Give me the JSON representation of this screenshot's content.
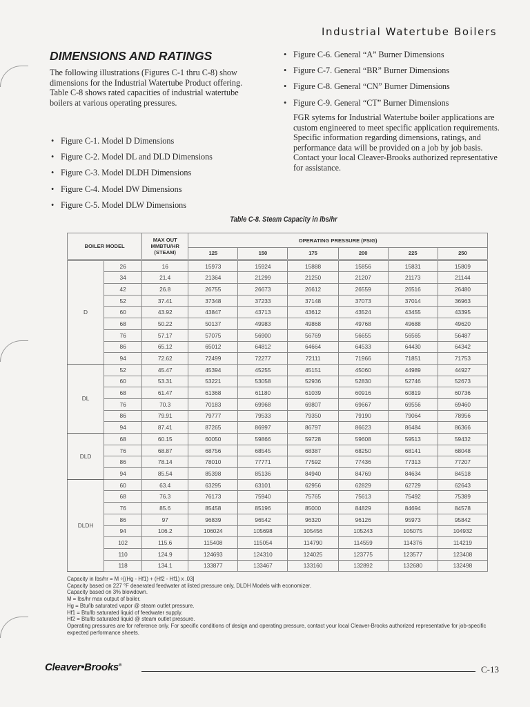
{
  "header": {
    "title": "Industrial Watertube Boilers"
  },
  "section": {
    "title": "DIMENSIONS AND RATINGS",
    "intro": "The following illustrations (Figures C-1 thru C-8) show dimensions for the Industrial Watertube Product offering. Table C-8 shows rated capacities of industrial watertube boilers at various operating pressures.",
    "left_bullets": [
      "Figure C-1. Model D Dimensions",
      "Figure C-2. Model DL and DLD Dimensions",
      "Figure C-3. Model DLDH Dimensions",
      "Figure C-4. Model DW Dimensions",
      "Figure C-5. Model DLW Dimensions"
    ],
    "right_bullets": [
      "Figure C-6. General “A” Burner Dimensions",
      "Figure C-7. General “BR” Burner Dimensions",
      "Figure C-8. General “CN” Burner Dimensions",
      "Figure C-9. General “CT” Burner Dimensions"
    ],
    "fgr_paragraph": "FGR sytems for Industrial Watertube boiler applications are custom engineered to meet specific application requirements. Specific information regarding dimensions, ratings, and performance data will be provided on a job by job basis. Contact your local Cleaver-Brooks authorized representative for assistance."
  },
  "table": {
    "caption": "Table C-8. Steam Capacity in lbs/hr",
    "headers": {
      "boiler_model": "BOILER MODEL",
      "max_out": "MAX OUT MMBTU/HR (STEAM)",
      "pressure": "OPERATING PRESSURE (PSIG)",
      "pressures": [
        "125",
        "150",
        "175",
        "200",
        "225",
        "250"
      ]
    },
    "groups": [
      {
        "model": "D",
        "rows": [
          [
            "26",
            "16",
            "15973",
            "15924",
            "15888",
            "15856",
            "15831",
            "15809"
          ],
          [
            "34",
            "21.4",
            "21364",
            "21299",
            "21250",
            "21207",
            "21173",
            "21144"
          ],
          [
            "42",
            "26.8",
            "26755",
            "26673",
            "26612",
            "26559",
            "26516",
            "26480"
          ],
          [
            "52",
            "37.41",
            "37348",
            "37233",
            "37148",
            "37073",
            "37014",
            "36963"
          ],
          [
            "60",
            "43.92",
            "43847",
            "43713",
            "43612",
            "43524",
            "43455",
            "43395"
          ],
          [
            "68",
            "50.22",
            "50137",
            "49983",
            "49868",
            "49768",
            "49688",
            "49620"
          ],
          [
            "76",
            "57.17",
            "57075",
            "56900",
            "56769",
            "56655",
            "56565",
            "56487"
          ],
          [
            "86",
            "65.12",
            "65012",
            "64812",
            "64664",
            "64533",
            "64430",
            "64342"
          ],
          [
            "94",
            "72.62",
            "72499",
            "72277",
            "72111",
            "71966",
            "71851",
            "71753"
          ]
        ]
      },
      {
        "model": "DL",
        "rows": [
          [
            "52",
            "45.47",
            "45394",
            "45255",
            "45151",
            "45060",
            "44989",
            "44927"
          ],
          [
            "60",
            "53.31",
            "53221",
            "53058",
            "52936",
            "52830",
            "52746",
            "52673"
          ],
          [
            "68",
            "61.47",
            "61368",
            "61180",
            "61039",
            "60916",
            "60819",
            "60736"
          ],
          [
            "76",
            "70.3",
            "70183",
            "69968",
            "69807",
            "69667",
            "69556",
            "69460"
          ],
          [
            "86",
            "79.91",
            "79777",
            "79533",
            "79350",
            "79190",
            "79064",
            "78956"
          ],
          [
            "94",
            "87.41",
            "87265",
            "86997",
            "86797",
            "86623",
            "86484",
            "86366"
          ]
        ]
      },
      {
        "model": "DLD",
        "rows": [
          [
            "68",
            "60.15",
            "60050",
            "59866",
            "59728",
            "59608",
            "59513",
            "59432"
          ],
          [
            "76",
            "68.87",
            "68756",
            "68545",
            "68387",
            "68250",
            "68141",
            "68048"
          ],
          [
            "86",
            "78.14",
            "78010",
            "77771",
            "77592",
            "77436",
            "77313",
            "77207"
          ],
          [
            "94",
            "85.54",
            "85398",
            "85136",
            "84940",
            "84769",
            "84634",
            "84518"
          ]
        ]
      },
      {
        "model": "DLDH",
        "rows": [
          [
            "60",
            "63.4",
            "63295",
            "63101",
            "62956",
            "62829",
            "62729",
            "62643"
          ],
          [
            "68",
            "76.3",
            "76173",
            "75940",
            "75765",
            "75613",
            "75492",
            "75389"
          ],
          [
            "76",
            "85.6",
            "85458",
            "85196",
            "85000",
            "84829",
            "84694",
            "84578"
          ],
          [
            "86",
            "97",
            "96839",
            "96542",
            "96320",
            "96126",
            "95973",
            "95842"
          ],
          [
            "94",
            "106.2",
            "106024",
            "105698",
            "105456",
            "105243",
            "105075",
            "104932"
          ],
          [
            "102",
            "115.6",
            "115408",
            "115054",
            "114790",
            "114559",
            "114376",
            "114219"
          ],
          [
            "110",
            "124.9",
            "124693",
            "124310",
            "124025",
            "123775",
            "123577",
            "123408"
          ],
          [
            "118",
            "134.1",
            "133877",
            "133467",
            "133160",
            "132892",
            "132680",
            "132498"
          ]
        ]
      }
    ],
    "notes": [
      "Capacity in lbs/hr = M ÷[(Hg - Hf1) + (Hf2 - Hf1) x .03]",
      "Capacity based on 227 °F deaerated feedwater at listed pressure only, DLDH Models with economizer.",
      "Capacity based on 3% blowdown.",
      "M = lbs/hr max output of boiler.",
      "Hg = Btu/lb saturated vapor @ steam outlet pressure.",
      "Hf1 = Btu/lb saturated liquid of feedwater supply.",
      "Hf2 = Btu/lb saturated liquid @ steam outlet pressure.",
      "Operating pressures are for reference only. For specific conditions of design and operating pressure, contact your local Cleaver-Brooks authorized representative for job-specific expected performance sheets."
    ]
  },
  "footer": {
    "logo": "Cleaver•Brooks",
    "page": "C-13"
  }
}
